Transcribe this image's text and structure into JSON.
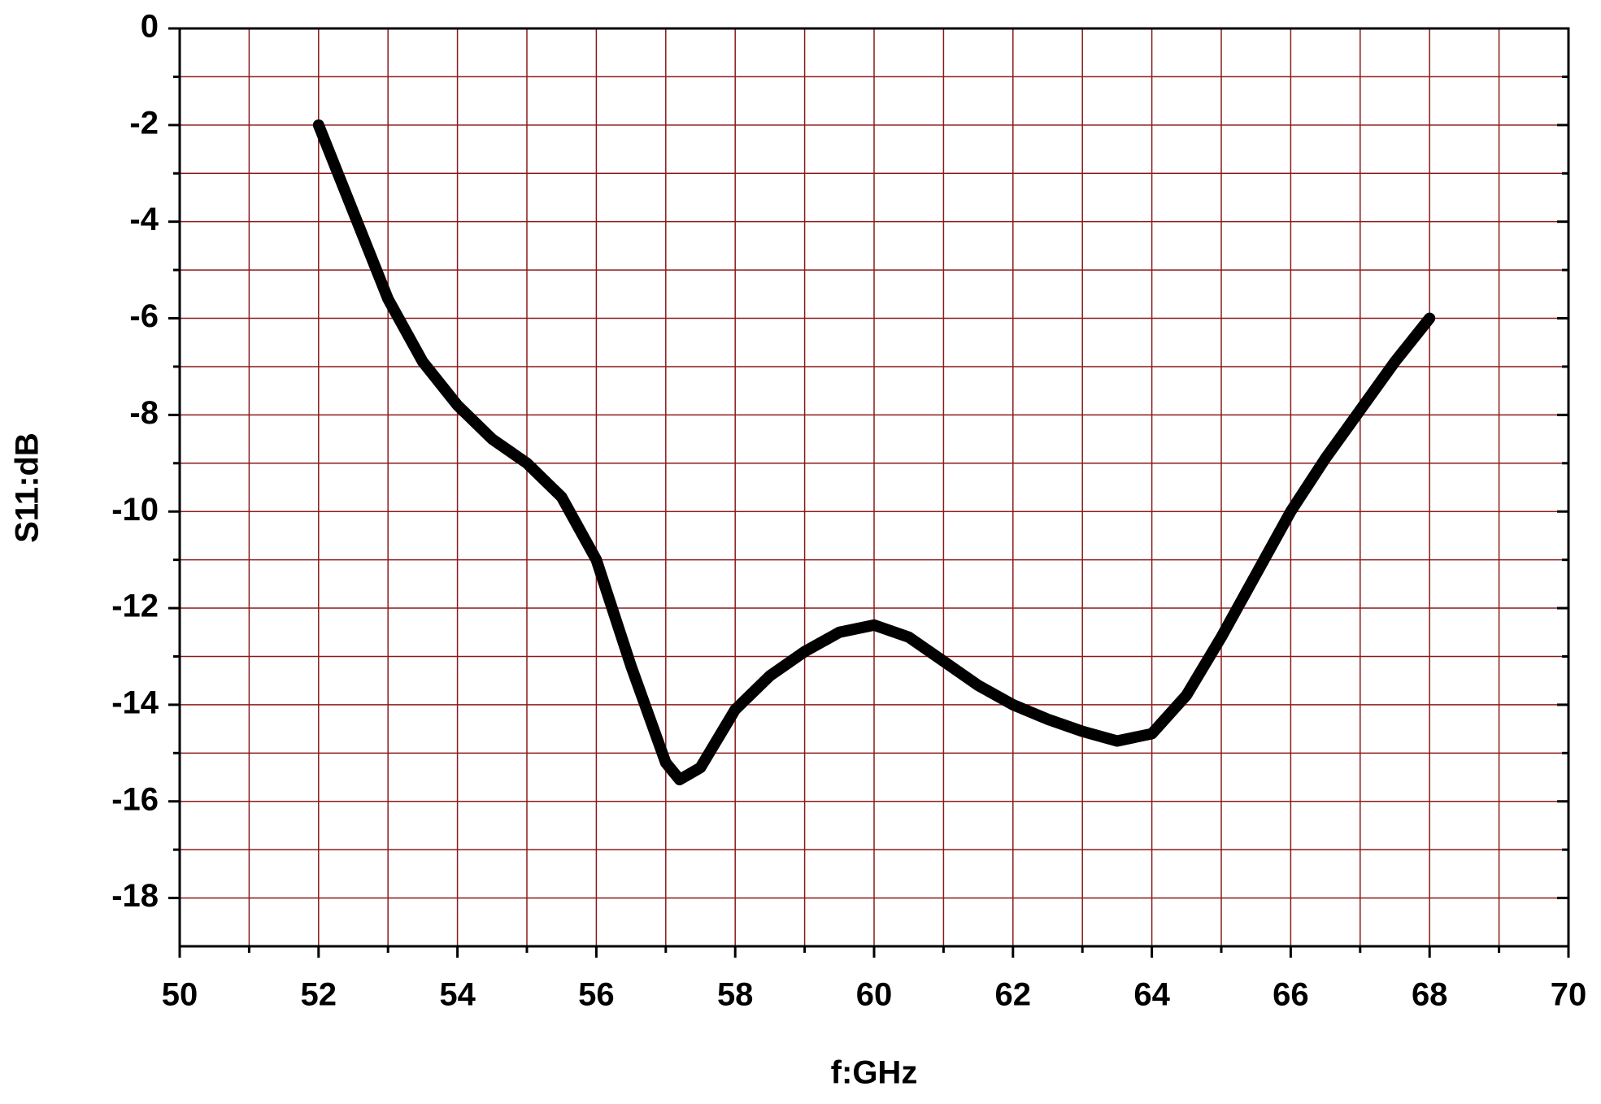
{
  "chart_data": {
    "type": "line",
    "xlabel": "f:GHz",
    "ylabel": "S11:dB",
    "x": [
      52,
      52.5,
      53,
      53.5,
      54,
      54.5,
      55,
      55.5,
      56,
      56.5,
      57,
      57.2,
      57.5,
      58,
      58.5,
      59,
      59.5,
      60,
      60.5,
      61,
      61.5,
      62,
      62.5,
      63,
      63.5,
      64,
      64.5,
      65,
      65.5,
      66,
      66.5,
      67,
      67.5,
      68
    ],
    "series": [
      {
        "color": "#000000",
        "values": [
          -2,
          -3.8,
          -5.6,
          -6.9,
          -7.8,
          -8.5,
          -9.0,
          -9.7,
          -11.0,
          -13.2,
          -15.2,
          -15.55,
          -15.3,
          -14.1,
          -13.4,
          -12.9,
          -12.5,
          -12.35,
          -12.6,
          -13.1,
          -13.6,
          -14.0,
          -14.3,
          -14.55,
          -14.75,
          -14.6,
          -13.8,
          -12.6,
          -11.3,
          -10.0,
          -8.9,
          -7.9,
          -6.9,
          -6.0
        ]
      }
    ],
    "xlim": [
      50,
      70
    ],
    "xticks": [
      50,
      52,
      54,
      56,
      58,
      60,
      62,
      64,
      66,
      68,
      70
    ],
    "xminor": [
      51,
      53,
      55,
      57,
      59,
      61,
      63,
      65,
      67,
      69
    ],
    "ylim": [
      -19,
      0
    ],
    "yticks": [
      0,
      -2,
      -4,
      -6,
      -8,
      -10,
      -12,
      -14,
      -16,
      -18
    ],
    "yminor": [
      -1,
      -3,
      -5,
      -7,
      -9,
      -11,
      -13,
      -15,
      -17
    ],
    "grid": true,
    "grid_color": "#8b1a1a"
  }
}
